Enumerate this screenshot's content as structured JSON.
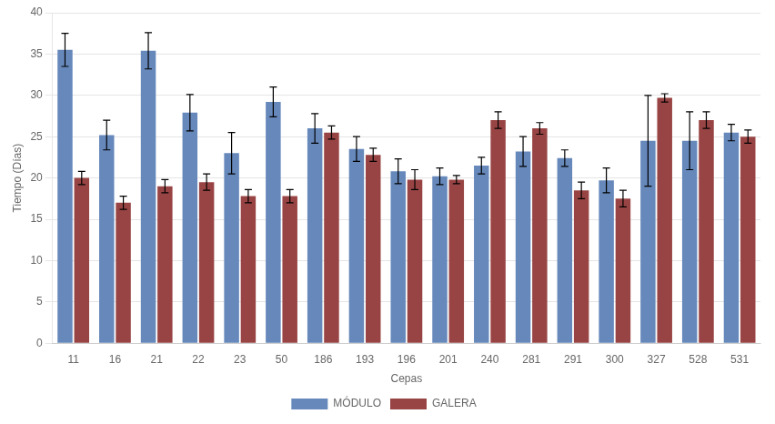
{
  "chart_data": {
    "type": "bar",
    "categories": [
      "11",
      "16",
      "21",
      "22",
      "23",
      "50",
      "186",
      "193",
      "196",
      "201",
      "240",
      "281",
      "291",
      "300",
      "327",
      "528",
      "531"
    ],
    "series": [
      {
        "name": "MÓDULO",
        "color": "#6688BB",
        "values": [
          35.5,
          25.2,
          35.4,
          27.9,
          23.0,
          29.2,
          26.0,
          23.5,
          20.8,
          20.2,
          21.5,
          23.2,
          22.4,
          19.7,
          24.5,
          24.5,
          25.5
        ],
        "errors": [
          2.0,
          1.8,
          2.2,
          2.2,
          2.5,
          1.8,
          1.8,
          1.5,
          1.5,
          1.0,
          1.0,
          1.8,
          1.0,
          1.5,
          5.5,
          3.5,
          1.0
        ]
      },
      {
        "name": "GALERA",
        "color": "#994444",
        "values": [
          20.0,
          17.0,
          19.0,
          19.5,
          17.8,
          17.8,
          25.5,
          22.8,
          19.8,
          19.8,
          27.0,
          26.0,
          18.5,
          17.5,
          29.7,
          27.0,
          25.0
        ],
        "errors": [
          0.8,
          0.8,
          0.8,
          1.0,
          0.8,
          0.8,
          0.8,
          0.8,
          1.2,
          0.5,
          1.0,
          0.7,
          1.0,
          1.0,
          0.5,
          1.0,
          0.8
        ]
      }
    ],
    "xlabel": "Cepas",
    "ylabel": "Tiempo (Días)",
    "ylim": [
      0,
      40
    ],
    "yticks": [
      0,
      5,
      10,
      15,
      20,
      25,
      30,
      35,
      40
    ],
    "grid": true,
    "legend": "bottom"
  }
}
